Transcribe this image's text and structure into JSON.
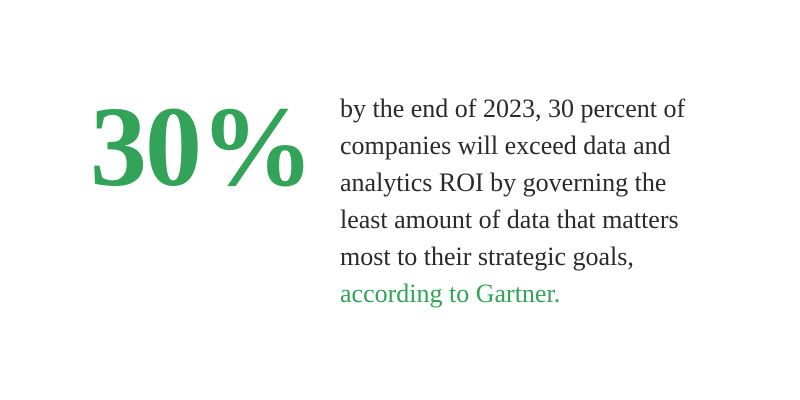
{
  "stat": {
    "value": "30%"
  },
  "quote": {
    "body": "by the end of 2023, 30 percent of companies will exceed data and analytics ROI by governing the least amount of data that matters most to their strategic goals, ",
    "source_link": "according to Gartner."
  },
  "colors": {
    "accent": "#34a35a",
    "text": "#2a2a2a",
    "background": "#ffffff"
  }
}
